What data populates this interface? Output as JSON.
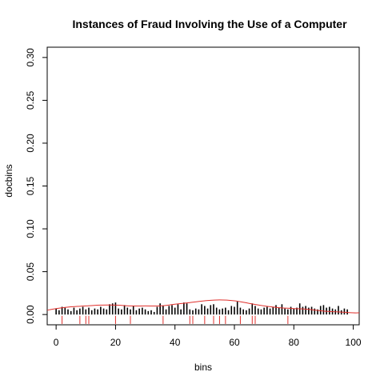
{
  "chart_data": {
    "type": "bar",
    "title": "Instances of Fraud Involving the Use of a Computer",
    "xlabel": "bins",
    "ylabel": "docbins",
    "xlim": [
      -3,
      102
    ],
    "ylim": [
      -0.012,
      0.312
    ],
    "x_ticks": [
      0,
      20,
      40,
      60,
      80,
      100
    ],
    "x_tick_labels": [
      "0",
      "20",
      "40",
      "60",
      "80",
      "100"
    ],
    "y_ticks": [
      0.0,
      0.05,
      0.1,
      0.15,
      0.2,
      0.25,
      0.3
    ],
    "y_tick_labels": [
      "0.00",
      "0.05",
      "0.10",
      "0.15",
      "0.20",
      "0.25",
      "0.30"
    ],
    "grid": false,
    "bar_color": "#000000",
    "curve_color": "#e0302c",
    "rug_color": "#e0302c",
    "x": [
      0,
      1,
      2,
      3,
      4,
      5,
      6,
      7,
      8,
      9,
      10,
      11,
      12,
      13,
      14,
      15,
      16,
      17,
      18,
      19,
      20,
      21,
      22,
      23,
      24,
      25,
      26,
      27,
      28,
      29,
      30,
      31,
      32,
      33,
      34,
      35,
      36,
      37,
      38,
      39,
      40,
      41,
      42,
      43,
      44,
      45,
      46,
      47,
      48,
      49,
      50,
      51,
      52,
      53,
      54,
      55,
      56,
      57,
      58,
      59,
      60,
      61,
      62,
      63,
      64,
      65,
      66,
      67,
      68,
      69,
      70,
      71,
      72,
      73,
      74,
      75,
      76,
      77,
      78,
      79,
      80,
      81,
      82,
      83,
      84,
      85,
      86,
      87,
      88,
      89,
      90,
      91,
      92,
      93,
      94,
      95,
      96,
      97,
      98
    ],
    "values": [
      0.007,
      0.005,
      0.009,
      0.008,
      0.006,
      0.004,
      0.008,
      0.005,
      0.007,
      0.009,
      0.006,
      0.008,
      0.005,
      0.007,
      0.006,
      0.009,
      0.007,
      0.006,
      0.012,
      0.013,
      0.014,
      0.007,
      0.006,
      0.011,
      0.008,
      0.006,
      0.01,
      0.005,
      0.007,
      0.008,
      0.006,
      0.004,
      0.005,
      0.003,
      0.009,
      0.013,
      0.01,
      0.006,
      0.01,
      0.011,
      0.008,
      0.012,
      0.006,
      0.014,
      0.013,
      0.006,
      0.005,
      0.007,
      0.006,
      0.012,
      0.01,
      0.007,
      0.011,
      0.012,
      0.008,
      0.006,
      0.007,
      0.008,
      0.005,
      0.01,
      0.009,
      0.015,
      0.008,
      0.006,
      0.005,
      0.007,
      0.013,
      0.01,
      0.007,
      0.006,
      0.008,
      0.009,
      0.007,
      0.009,
      0.011,
      0.008,
      0.012,
      0.007,
      0.006,
      0.009,
      0.007,
      0.008,
      0.013,
      0.009,
      0.01,
      0.008,
      0.009,
      0.007,
      0.006,
      0.01,
      0.011,
      0.008,
      0.009,
      0.007,
      0.006,
      0.01,
      0.005,
      0.007,
      0.006
    ],
    "density_curve": {
      "x": [
        -3,
        0,
        5,
        10,
        15,
        20,
        25,
        30,
        35,
        40,
        45,
        50,
        55,
        60,
        65,
        70,
        75,
        80,
        85,
        90,
        95,
        100,
        102
      ],
      "y": [
        0.005,
        0.007,
        0.009,
        0.01,
        0.011,
        0.011,
        0.01,
        0.01,
        0.01,
        0.012,
        0.014,
        0.016,
        0.017,
        0.016,
        0.013,
        0.01,
        0.008,
        0.007,
        0.006,
        0.004,
        0.003,
        0.002,
        0.002
      ]
    },
    "rug": [
      2,
      8,
      10,
      11,
      20,
      25,
      36,
      45,
      46,
      50,
      53,
      55,
      57,
      62,
      66,
      67,
      78
    ]
  }
}
